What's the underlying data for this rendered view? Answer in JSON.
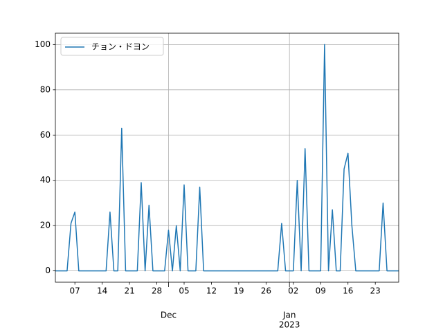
{
  "chart_data": {
    "type": "line",
    "x": [
      "2022-11-02",
      "2022-11-03",
      "2022-11-04",
      "2022-11-05",
      "2022-11-06",
      "2022-11-07",
      "2022-11-08",
      "2022-11-09",
      "2022-11-10",
      "2022-11-11",
      "2022-11-12",
      "2022-11-13",
      "2022-11-14",
      "2022-11-15",
      "2022-11-16",
      "2022-11-17",
      "2022-11-18",
      "2022-11-19",
      "2022-11-20",
      "2022-11-21",
      "2022-11-22",
      "2022-11-23",
      "2022-11-24",
      "2022-11-25",
      "2022-11-26",
      "2022-11-27",
      "2022-11-28",
      "2022-11-29",
      "2022-11-30",
      "2022-12-01",
      "2022-12-02",
      "2022-12-03",
      "2022-12-04",
      "2022-12-05",
      "2022-12-06",
      "2022-12-07",
      "2022-12-08",
      "2022-12-09",
      "2022-12-10",
      "2022-12-11",
      "2022-12-12",
      "2022-12-13",
      "2022-12-14",
      "2022-12-15",
      "2022-12-16",
      "2022-12-17",
      "2022-12-18",
      "2022-12-19",
      "2022-12-20",
      "2022-12-21",
      "2022-12-22",
      "2022-12-23",
      "2022-12-24",
      "2022-12-25",
      "2022-12-26",
      "2022-12-27",
      "2022-12-28",
      "2022-12-29",
      "2022-12-30",
      "2022-12-31",
      "2023-01-01",
      "2023-01-02",
      "2023-01-03",
      "2023-01-04",
      "2023-01-05",
      "2023-01-06",
      "2023-01-07",
      "2023-01-08",
      "2023-01-09",
      "2023-01-10",
      "2023-01-11",
      "2023-01-12",
      "2023-01-13",
      "2023-01-14",
      "2023-01-15",
      "2023-01-16",
      "2023-01-17",
      "2023-01-18",
      "2023-01-19",
      "2023-01-20",
      "2023-01-21",
      "2023-01-22",
      "2023-01-23",
      "2023-01-24",
      "2023-01-25",
      "2023-01-26",
      "2023-01-27",
      "2023-01-28",
      "2023-01-29"
    ],
    "series": [
      {
        "name": "チョン・ドヨン",
        "color": "#1f77b4",
        "values": [
          0,
          0,
          0,
          0,
          21,
          26,
          0,
          0,
          0,
          0,
          0,
          0,
          0,
          0,
          26,
          0,
          0,
          63,
          0,
          0,
          0,
          0,
          39,
          0,
          29,
          0,
          0,
          0,
          0,
          18,
          0,
          20,
          0,
          38,
          0,
          0,
          0,
          37,
          0,
          0,
          0,
          0,
          0,
          0,
          0,
          0,
          0,
          0,
          0,
          0,
          0,
          0,
          0,
          0,
          0,
          0,
          0,
          0,
          21,
          0,
          0,
          0,
          40,
          0,
          54,
          0,
          0,
          0,
          0,
          100,
          0,
          27,
          0,
          0,
          45,
          52,
          20,
          0,
          0,
          0,
          0,
          0,
          0,
          0,
          30,
          0,
          0,
          0,
          0
        ]
      }
    ],
    "xlim": [
      "2022-11-02",
      "2023-01-29"
    ],
    "xticks": [
      {
        "value": "2022-12-01",
        "label": "Dec"
      },
      {
        "value": "2023-01-01",
        "label": "Jan"
      }
    ],
    "xticks_minor": [
      {
        "value": "2022-11-07",
        "label": "07"
      },
      {
        "value": "2022-11-14",
        "label": "14"
      },
      {
        "value": "2022-11-21",
        "label": "21"
      },
      {
        "value": "2022-11-28",
        "label": "28"
      },
      {
        "value": "2022-12-05",
        "label": "05"
      },
      {
        "value": "2022-12-12",
        "label": "12"
      },
      {
        "value": "2022-12-19",
        "label": "19"
      },
      {
        "value": "2022-12-26",
        "label": "26"
      },
      {
        "value": "2023-01-02",
        "label": "02"
      },
      {
        "value": "2023-01-09",
        "label": "09"
      },
      {
        "value": "2023-01-16",
        "label": "16"
      },
      {
        "value": "2023-01-23",
        "label": "23"
      }
    ],
    "x_offset_label": "2023",
    "ylim": [
      -5,
      105
    ],
    "yticks": [
      0,
      20,
      40,
      60,
      80,
      100
    ],
    "grid": true,
    "legend": "upper left"
  }
}
